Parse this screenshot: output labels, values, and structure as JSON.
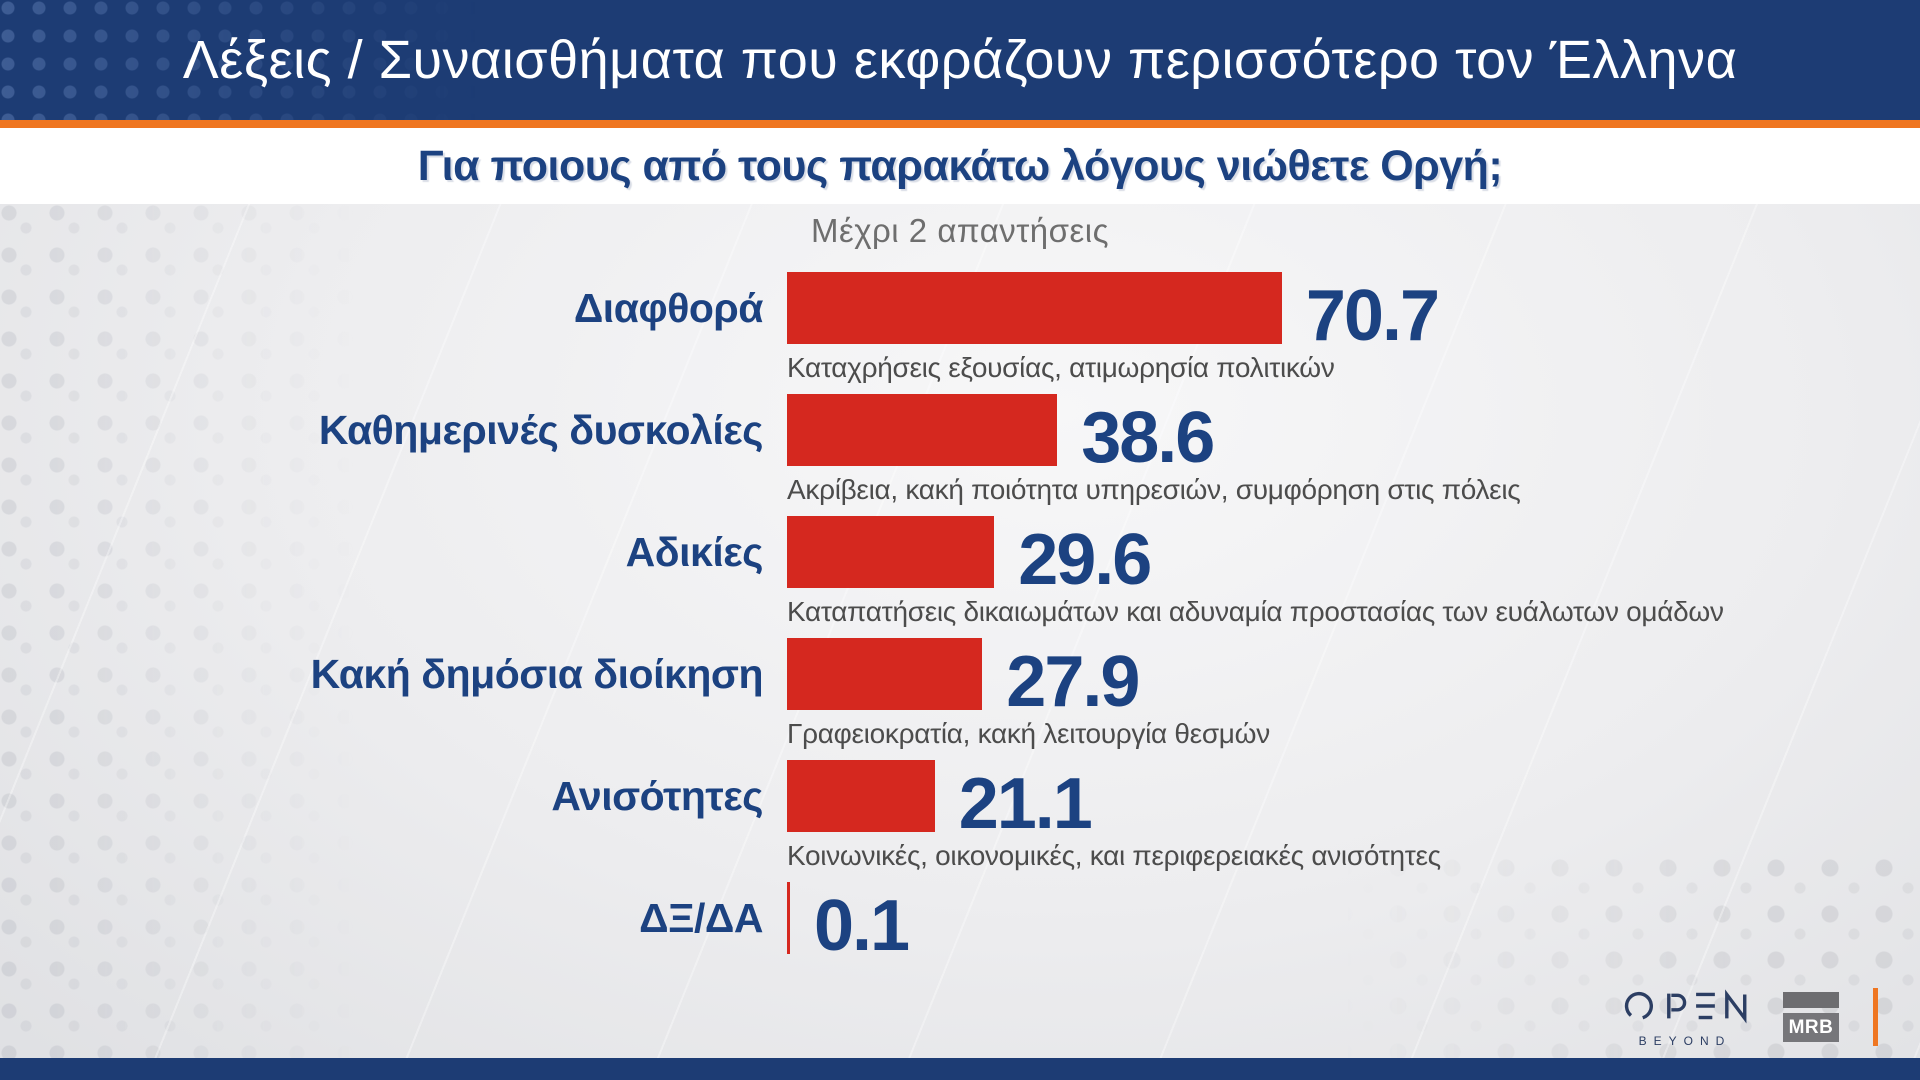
{
  "header": {
    "title": "Λέξεις / Συναισθήματα που εκφράζουν περισσότερο τον Έλληνα"
  },
  "question": {
    "text": "Για ποιους από τους παρακάτω λόγους νιώθετε Οργή;",
    "note": "Μέχρι 2 απαντήσεις"
  },
  "chart_data": {
    "type": "bar",
    "orientation": "horizontal",
    "title": "Για ποιους από τους παρακάτω λόγους νιώθετε Οργή;",
    "subtitle": "Μέχρι 2 απαντήσεις",
    "categories": [
      "Διαφθορά",
      "Καθημερινές δυσκολίες",
      "Αδικίες",
      "Κακή δημόσια διοίκηση",
      "Ανισότητες",
      "ΔΞ/ΔΑ"
    ],
    "values": [
      70.7,
      38.6,
      29.6,
      27.9,
      21.1,
      0.1
    ],
    "value_labels": [
      "70.7",
      "38.6",
      "29.6",
      "27.9",
      "21.1",
      "0.1"
    ],
    "descriptions": [
      "Καταχρήσεις εξουσίας, ατιμωρησία πολιτικών",
      "Ακρίβεια, κακή ποιότητα υπηρεσιών, συμφόρηση στις πόλεις",
      "Καταπατήσεις δικαιωμάτων και αδυναμία προστασίας των ευάλωτων ομάδων",
      "Γραφειοκρατία, κακή λειτουργία θεσμών",
      "Κοινωνικές, οικονομικές, και περιφερειακές ανισότητες",
      ""
    ],
    "xlim": [
      0,
      100
    ],
    "grid": false,
    "legend": "none",
    "bar_color": "#d5281f",
    "value_color": "#1c4281",
    "label_color": "#1c4281",
    "description_color": "#4c4c4c"
  },
  "branding": {
    "open_label": "OPEN",
    "open_sublabel": "BEYOND",
    "mrb_label": "MRB"
  },
  "colors": {
    "header_bg": "#1d3c74",
    "accent_orange": "#ef7621",
    "bar_red": "#d5281f",
    "text_navy": "#1c4281",
    "note_gray": "#6e6e6e",
    "footer_bg": "#1d3c74"
  }
}
